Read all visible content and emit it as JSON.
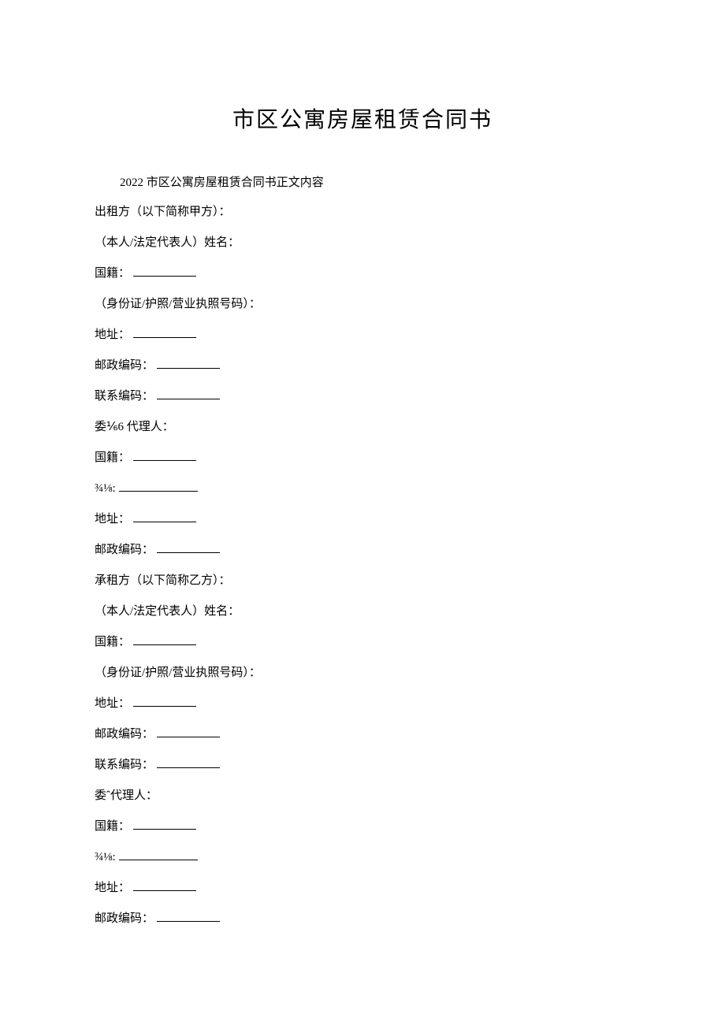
{
  "title": "市区公寓房屋租赁合同书",
  "intro": "2022 市区公寓房屋租赁合同书正文内容",
  "partyA": {
    "header": "出租方（以下简称甲方）：",
    "name": "（本人/法定代表人）姓名：",
    "nationality": "国籍：",
    "idNumber": "（身份证/护照/营业执照号码）：",
    "address": "地址：",
    "postalCode": "邮政编码：",
    "contactCode": "联系编码：",
    "agent": "委⅙6 代理人：",
    "agentNationality": "国籍：",
    "fraction": "¾⅛:",
    "agentAddress": "地址：",
    "agentPostalCode": "邮政编码："
  },
  "partyB": {
    "header": "承租方（以下简称乙方）：",
    "name": "（本人/法定代表人）姓名：",
    "nationality": "国籍：",
    "idNumber": "（身份证/护照/营业执照号码）：",
    "address": "地址：",
    "postalCode": "邮政编码：",
    "contactCode": "联系编码：",
    "agent": "委ˆ代理人：",
    "agentNationality": "国籍：",
    "fraction": "¾⅛:",
    "agentAddress": "地址：",
    "agentPostalCode": "邮政编码："
  }
}
